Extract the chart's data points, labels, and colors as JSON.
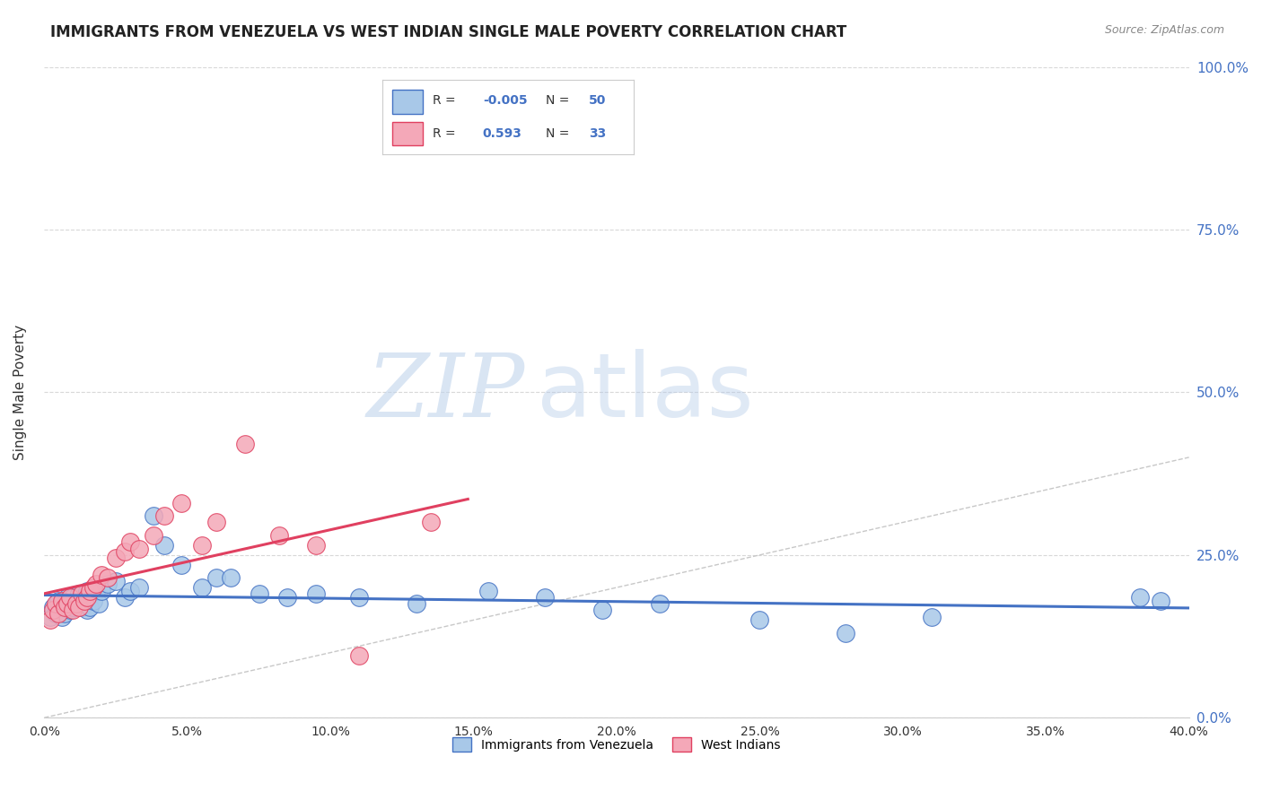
{
  "title": "IMMIGRANTS FROM VENEZUELA VS WEST INDIAN SINGLE MALE POVERTY CORRELATION CHART",
  "source": "Source: ZipAtlas.com",
  "ylabel": "Single Male Poverty",
  "legend_label1": "Immigrants from Venezuela",
  "legend_label2": "West Indians",
  "R1": "-0.005",
  "N1": "50",
  "R2": "0.593",
  "N2": "33",
  "xmin": 0.0,
  "xmax": 0.4,
  "ymin": 0.0,
  "ymax": 1.0,
  "xticks": [
    0.0,
    0.05,
    0.1,
    0.15,
    0.2,
    0.25,
    0.3,
    0.35,
    0.4
  ],
  "yticks": [
    0.0,
    0.25,
    0.5,
    0.75,
    1.0
  ],
  "color_blue": "#a8c8e8",
  "color_pink": "#f4a8b8",
  "color_line_blue": "#4472c4",
  "color_line_pink": "#e04060",
  "color_diag": "#c8c8c8",
  "background": "#ffffff",
  "watermark_zip": "ZIP",
  "watermark_atlas": "atlas",
  "blue_scatter_x": [
    0.002,
    0.003,
    0.004,
    0.005,
    0.005,
    0.006,
    0.006,
    0.007,
    0.008,
    0.008,
    0.009,
    0.01,
    0.01,
    0.011,
    0.012,
    0.012,
    0.013,
    0.014,
    0.015,
    0.015,
    0.016,
    0.017,
    0.018,
    0.019,
    0.02,
    0.022,
    0.025,
    0.028,
    0.03,
    0.033,
    0.038,
    0.042,
    0.048,
    0.055,
    0.06,
    0.065,
    0.075,
    0.085,
    0.095,
    0.11,
    0.13,
    0.155,
    0.175,
    0.195,
    0.215,
    0.25,
    0.28,
    0.31,
    0.383,
    0.39
  ],
  "blue_scatter_y": [
    0.155,
    0.17,
    0.16,
    0.165,
    0.18,
    0.155,
    0.175,
    0.16,
    0.17,
    0.185,
    0.165,
    0.17,
    0.185,
    0.175,
    0.175,
    0.19,
    0.17,
    0.18,
    0.165,
    0.195,
    0.17,
    0.18,
    0.195,
    0.175,
    0.195,
    0.205,
    0.21,
    0.185,
    0.195,
    0.2,
    0.31,
    0.265,
    0.235,
    0.2,
    0.215,
    0.215,
    0.19,
    0.185,
    0.19,
    0.185,
    0.175,
    0.195,
    0.185,
    0.165,
    0.175,
    0.15,
    0.13,
    0.155,
    0.185,
    0.18
  ],
  "pink_scatter_x": [
    0.002,
    0.003,
    0.004,
    0.005,
    0.006,
    0.007,
    0.008,
    0.009,
    0.01,
    0.011,
    0.012,
    0.013,
    0.014,
    0.015,
    0.016,
    0.017,
    0.018,
    0.02,
    0.022,
    0.025,
    0.028,
    0.03,
    0.033,
    0.038,
    0.042,
    0.048,
    0.055,
    0.06,
    0.07,
    0.082,
    0.095,
    0.11,
    0.135
  ],
  "pink_scatter_y": [
    0.15,
    0.165,
    0.175,
    0.16,
    0.18,
    0.17,
    0.175,
    0.185,
    0.165,
    0.175,
    0.17,
    0.19,
    0.18,
    0.185,
    0.195,
    0.2,
    0.205,
    0.22,
    0.215,
    0.245,
    0.255,
    0.27,
    0.26,
    0.28,
    0.31,
    0.33,
    0.265,
    0.3,
    0.42,
    0.28,
    0.265,
    0.095,
    0.3
  ]
}
